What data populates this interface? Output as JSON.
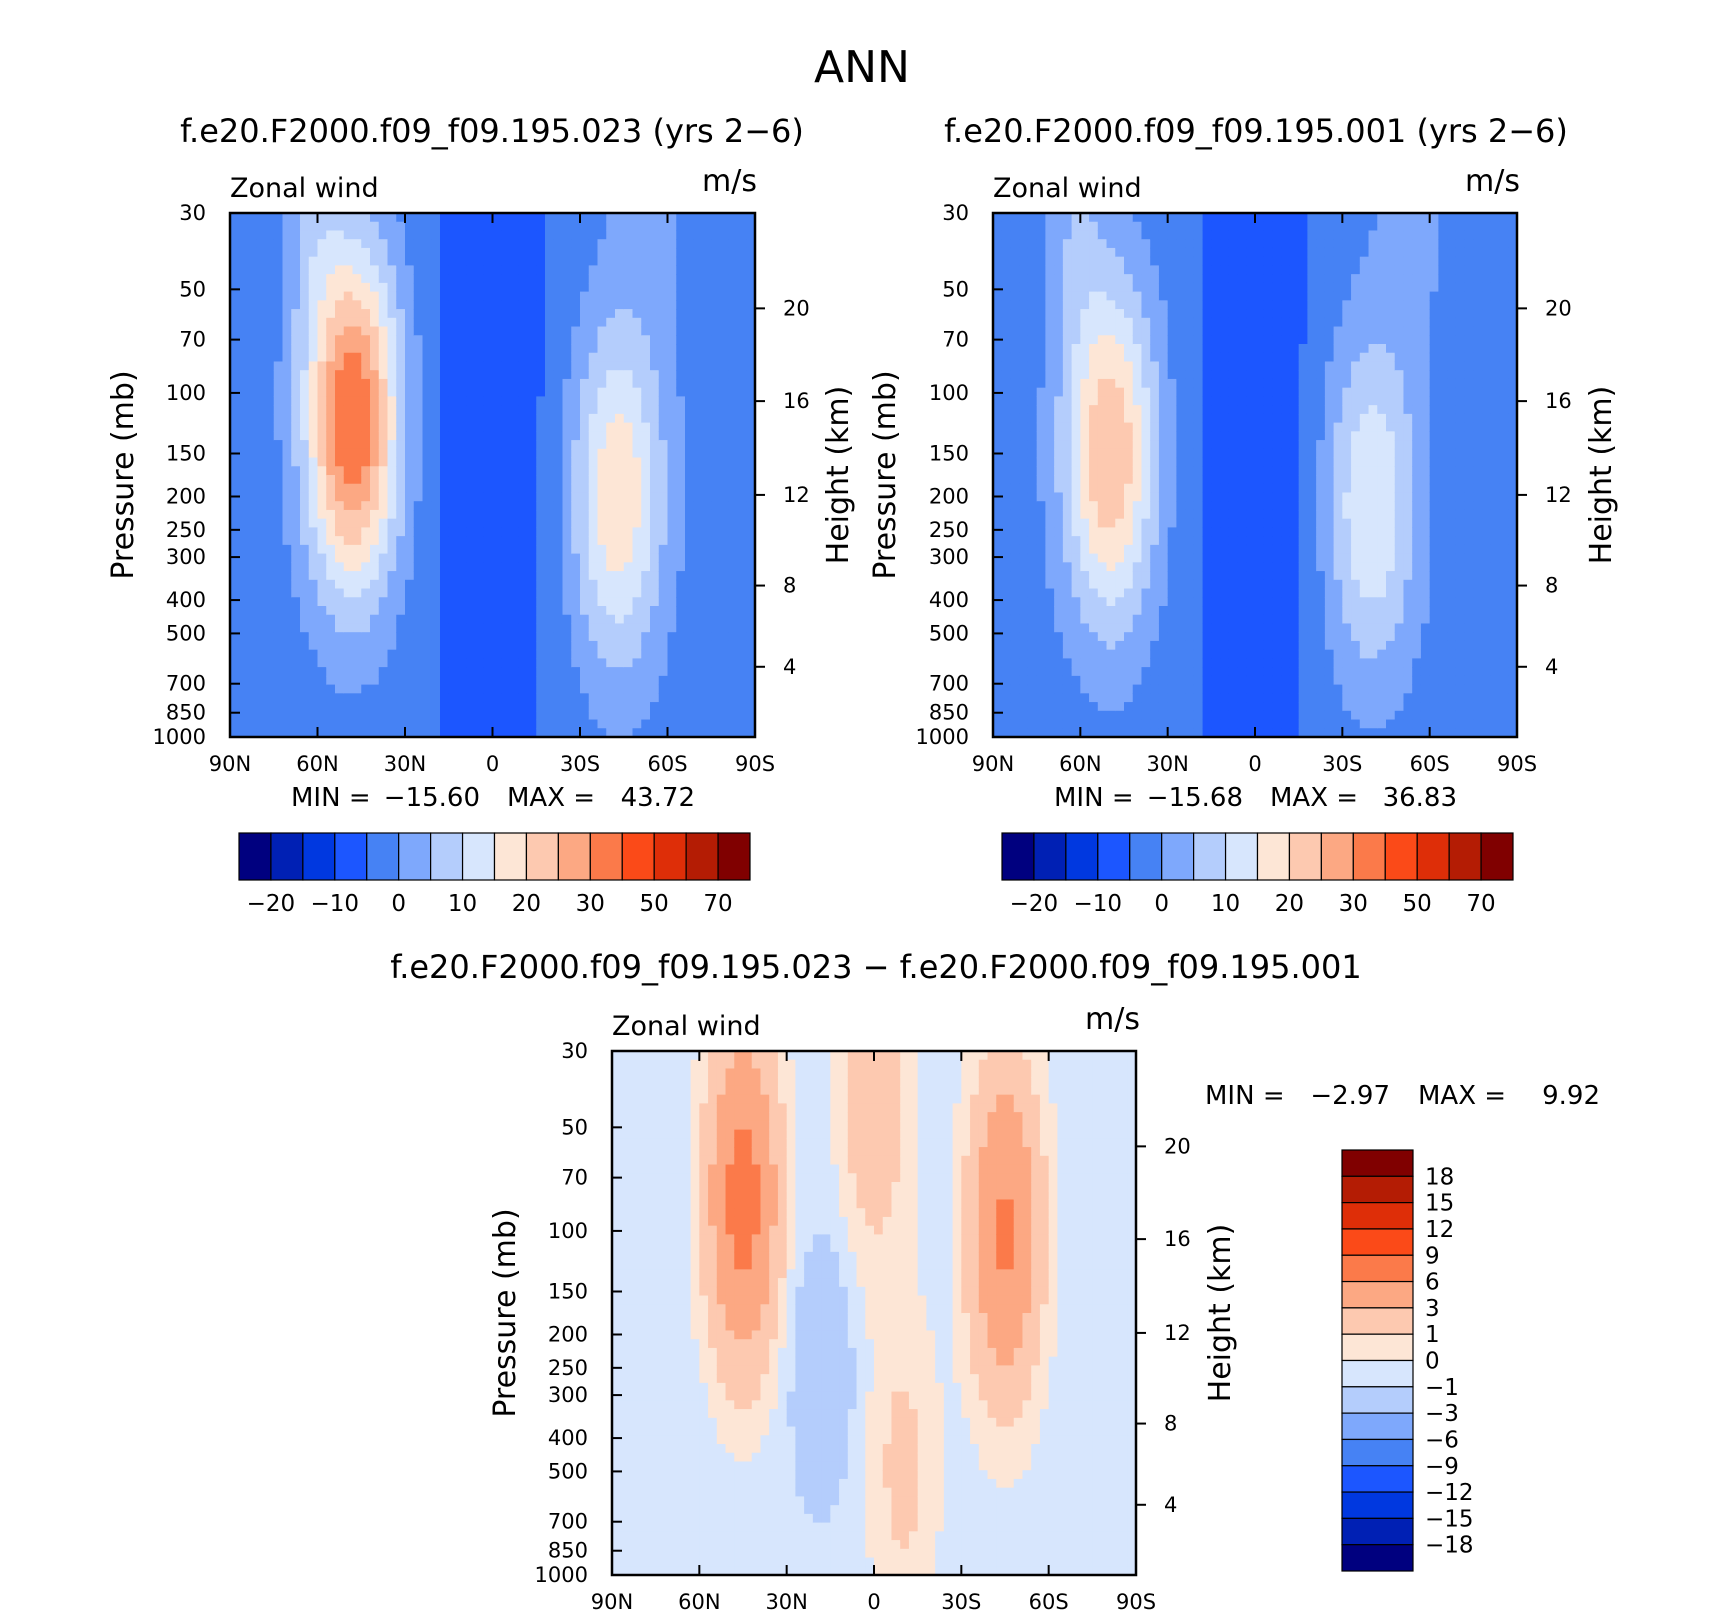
{
  "page": {
    "title": "ANN"
  },
  "colors": {
    "abs": [
      "#00007f",
      "#0020b4",
      "#0038e0",
      "#1c56ff",
      "#4682f4",
      "#7ea8fc",
      "#b4cdfc",
      "#d7e6fd",
      "#fde6d6",
      "#fdc9b0",
      "#fca883",
      "#fb7a4a",
      "#fb4a18",
      "#de2e08",
      "#b41c04",
      "#800000"
    ],
    "diff": [
      "#00007f",
      "#0020b4",
      "#0038e0",
      "#1c56ff",
      "#4682f4",
      "#7ea8fc",
      "#b4cdfc",
      "#d7e6fd",
      "#fde6d6",
      "#fdc9b0",
      "#fca883",
      "#fb7a4a",
      "#fb4a18",
      "#de2e08",
      "#b41c04",
      "#800000"
    ]
  },
  "chart_data": [
    {
      "id": "panel_a",
      "type": "heatmap",
      "title": "f.e20.F2000.f09_f09.195.023 (yrs 2−6)",
      "left_label": "Zonal wind",
      "right_label": "m/s",
      "ylabel": "Pressure (mb)",
      "y2label": "Height (km)",
      "x_ticks": [
        "90N",
        "60N",
        "30N",
        "0",
        "30S",
        "60S",
        "90S"
      ],
      "y_ticks": [
        "30",
        "50",
        "70",
        "100",
        "150",
        "200",
        "250",
        "300",
        "400",
        "500",
        "700",
        "850",
        "1000"
      ],
      "y2_ticks": [
        "20",
        "16",
        "12",
        "8",
        "4"
      ],
      "stats": {
        "min_label": "MIN =",
        "min": "−15.60",
        "max_label": "MAX =",
        "max": "43.72"
      },
      "colorbar_labels": [
        "−20",
        "−10",
        "0",
        "10",
        "20",
        "30",
        "50",
        "70"
      ],
      "contour_levels": [
        -25,
        -20,
        -15,
        -10,
        -5,
        0,
        5,
        10,
        15,
        20,
        25,
        30,
        40,
        50,
        60,
        70
      ],
      "jets": [
        {
          "lat": -43,
          "p": 200,
          "peak": 22
        },
        {
          "lat": 48,
          "p": 120,
          "peak": 38
        }
      ]
    },
    {
      "id": "panel_b",
      "type": "heatmap",
      "title": "f.e20.F2000.f09_f09.195.001 (yrs 2−6)",
      "left_label": "Zonal wind",
      "right_label": "m/s",
      "ylabel": "Pressure (mb)",
      "y2label": "Height (km)",
      "x_ticks": [
        "90N",
        "60N",
        "30N",
        "0",
        "30S",
        "60S",
        "90S"
      ],
      "y_ticks": [
        "30",
        "50",
        "70",
        "100",
        "150",
        "200",
        "250",
        "300",
        "400",
        "500",
        "700",
        "850",
        "1000"
      ],
      "y2_ticks": [
        "20",
        "16",
        "12",
        "8",
        "4"
      ],
      "stats": {
        "min_label": "MIN =",
        "min": "−15.68",
        "max_label": "MAX =",
        "max": "36.83"
      },
      "colorbar_labels": [
        "−20",
        "−10",
        "0",
        "10",
        "20",
        "30",
        "50",
        "70"
      ],
      "contour_levels": [
        -25,
        -20,
        -15,
        -10,
        -5,
        0,
        5,
        10,
        15,
        20,
        25,
        30,
        40,
        50,
        60,
        70
      ],
      "jets": [
        {
          "lat": -40,
          "p": 210,
          "peak": 18
        },
        {
          "lat": 50,
          "p": 150,
          "peak": 28
        }
      ]
    },
    {
      "id": "panel_diff",
      "type": "heatmap",
      "title": "f.e20.F2000.f09_f09.195.023 − f.e20.F2000.f09_f09.195.001",
      "left_label": "Zonal wind",
      "right_label": "m/s",
      "ylabel": "Pressure (mb)",
      "y2label": "Height (km)",
      "x_ticks": [
        "90N",
        "60N",
        "30N",
        "0",
        "30S",
        "60S",
        "90S"
      ],
      "y_ticks": [
        "30",
        "50",
        "70",
        "100",
        "150",
        "200",
        "250",
        "300",
        "400",
        "500",
        "700",
        "850",
        "1000"
      ],
      "y2_ticks": [
        "20",
        "16",
        "12",
        "8",
        "4"
      ],
      "stats": {
        "min_label": "MIN =",
        "min": "−2.97",
        "max_label": "MAX =",
        "max": "9.92"
      },
      "colorbar_labels": [
        "18",
        "15",
        "12",
        "9",
        "6",
        "3",
        "1",
        "0",
        "−1",
        "−3",
        "−6",
        "−9",
        "−12",
        "−15",
        "−18"
      ],
      "contour_levels": [
        -18,
        -15,
        -12,
        -9,
        -6,
        -3,
        -1,
        0,
        1,
        3,
        6,
        9,
        12,
        15,
        18
      ],
      "features": [
        {
          "lat": 45,
          "p": 80,
          "peak": 8
        },
        {
          "lat": -45,
          "p": 100,
          "peak": 7
        },
        {
          "lat": 0,
          "p": 40,
          "peak": 3
        },
        {
          "lat": -10,
          "p": 500,
          "peak": 2
        }
      ]
    }
  ]
}
